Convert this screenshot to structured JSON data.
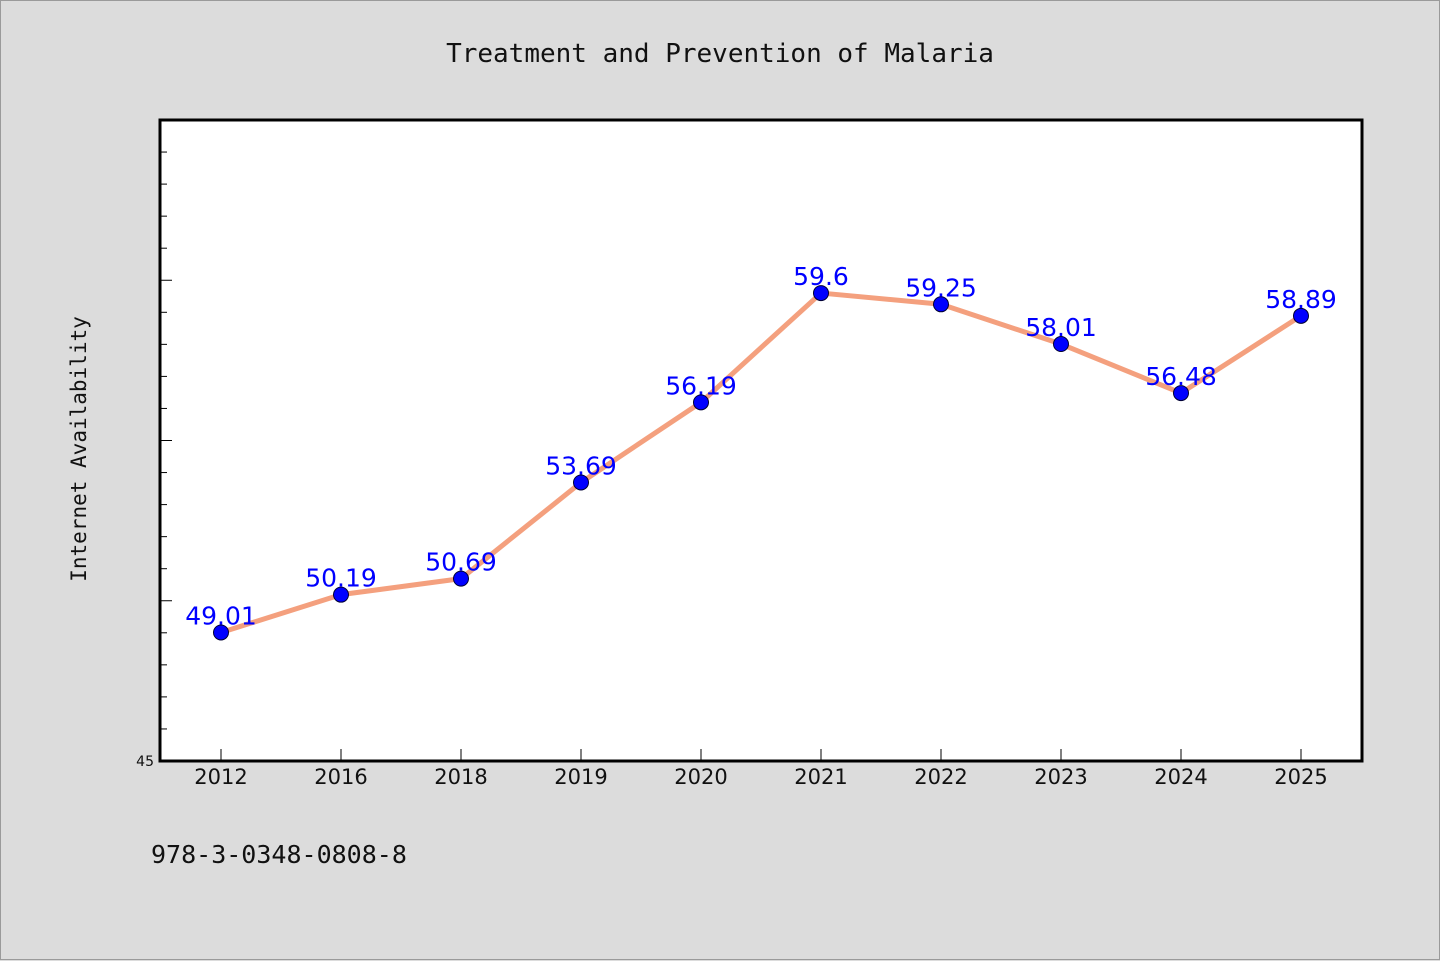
{
  "chart_data": {
    "type": "line",
    "title": "Treatment and Prevention of Malaria",
    "xlabel": "",
    "ylabel": "Internet Availability",
    "categories": [
      "2012",
      "2016",
      "2018",
      "2019",
      "2020",
      "2021",
      "2022",
      "2023",
      "2024",
      "2025"
    ],
    "series": [
      {
        "values": [
          49.01,
          50.19,
          50.69,
          53.69,
          56.19,
          59.6,
          59.25,
          58.01,
          56.48,
          58.89
        ],
        "line_color": "#f4a07e",
        "marker_color": "#0000ff",
        "label_color": "#0000ff"
      }
    ],
    "data_labels": [
      "49.01",
      "50.19",
      "50.69",
      "53.69",
      "56.19",
      "59.6",
      "59.25",
      "58.01",
      "56.48",
      "58.89"
    ],
    "ylim": [
      45,
      65
    ],
    "y_tick_labels": [
      "45"
    ],
    "grid": false
  },
  "footer": {
    "isbn": "978-3-0348-0808-8"
  },
  "colors": {
    "page_background": "#dcdcdc",
    "plot_background": "#ffffff",
    "axis": "#000000"
  }
}
